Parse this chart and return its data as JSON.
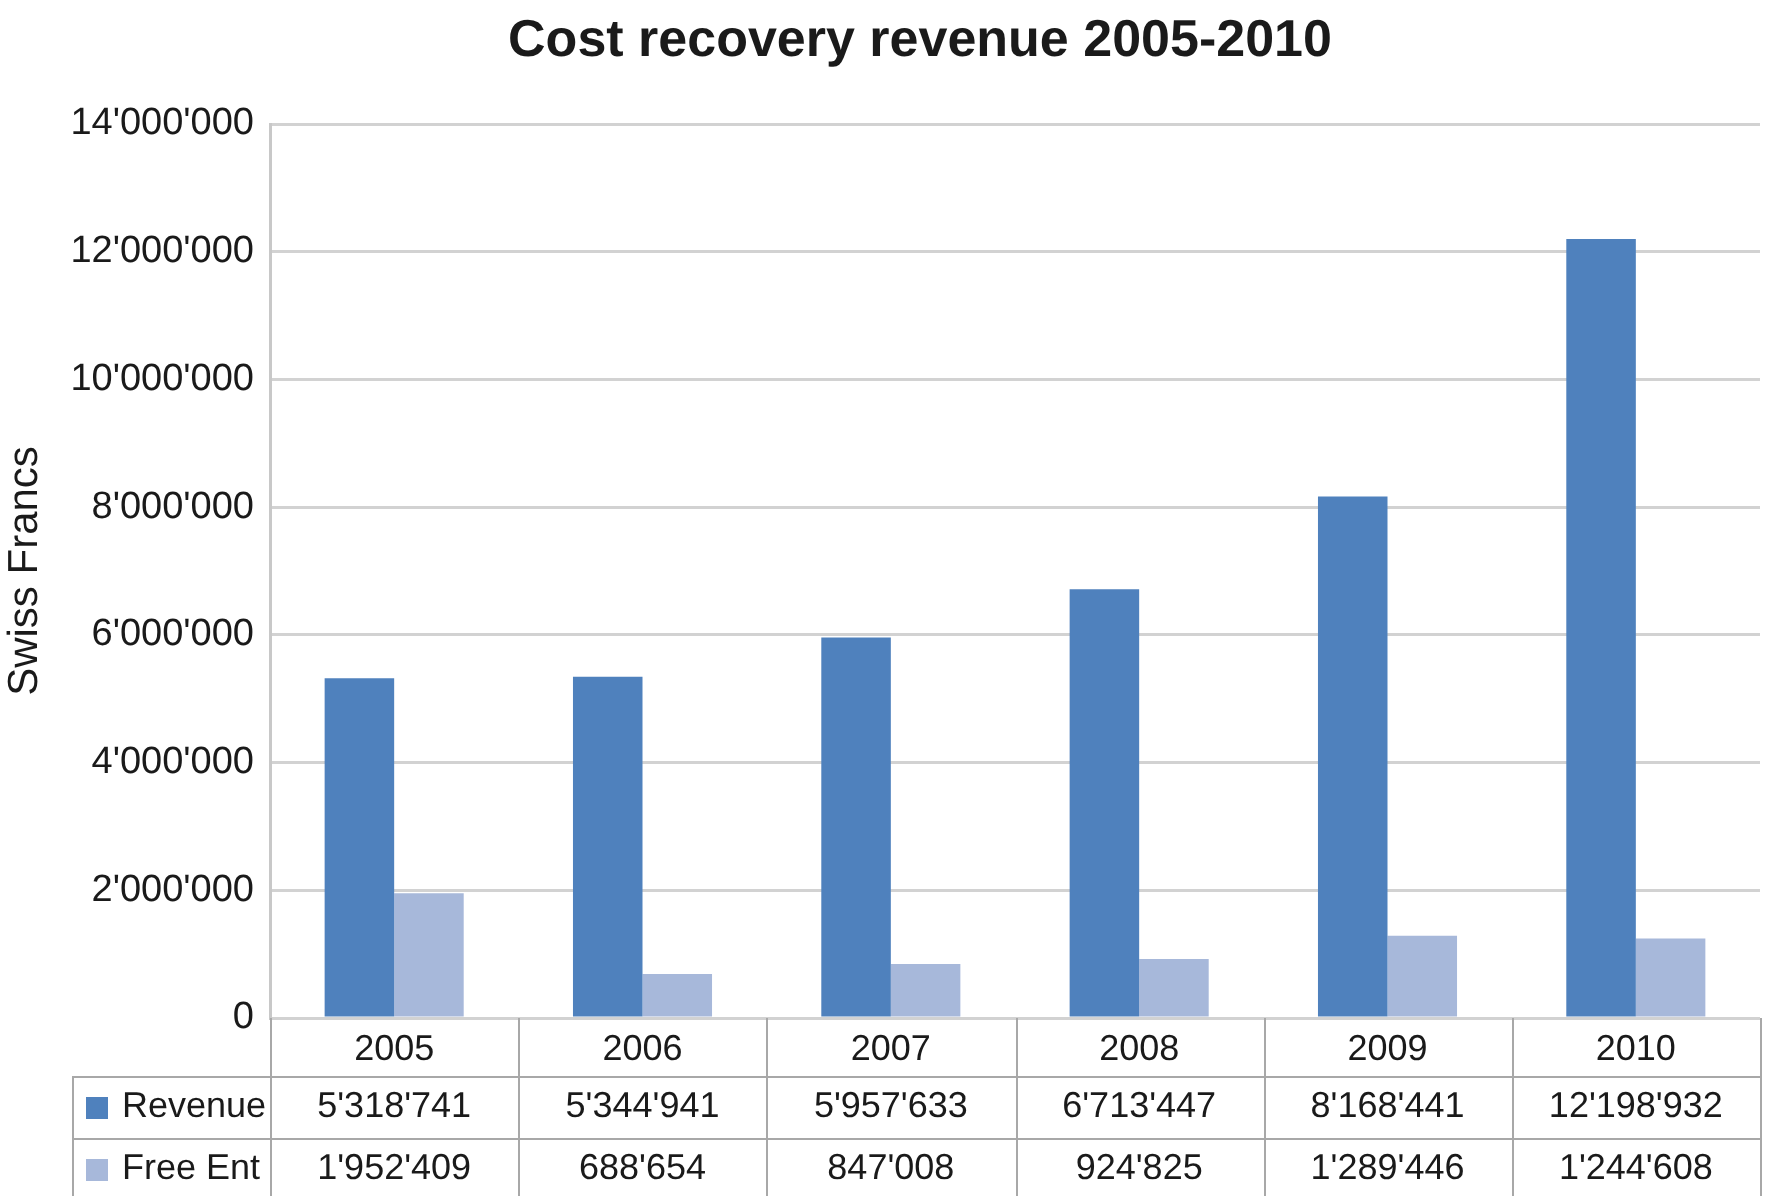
{
  "chart_data": {
    "type": "bar",
    "title": "Cost recovery revenue 2005-2010",
    "ylabel": "Swiss Francs",
    "categories": [
      "2005",
      "2006",
      "2007",
      "2008",
      "2009",
      "2010"
    ],
    "series": [
      {
        "name": "Revenue",
        "color": "#4f81bd",
        "values": [
          5318741,
          5344941,
          5957633,
          6713447,
          8168441,
          12198932
        ],
        "value_labels": [
          "5'318'741",
          "5'344'941",
          "5'957'633",
          "6'713'447",
          "8'168'441",
          "12'198'932"
        ]
      },
      {
        "name": "Free Ent",
        "color": "#a7b8da",
        "values": [
          1952409,
          688654,
          847008,
          924825,
          1289446,
          1244608
        ],
        "value_labels": [
          "1'952'409",
          "688'654",
          "847'008",
          "924'825",
          "1'289'446",
          "1'244'608"
        ]
      }
    ],
    "ylim": [
      0,
      14000000
    ],
    "yticks": [
      0,
      {
        "value": 2000000,
        "label": "2'000'000"
      },
      {
        "value": 4000000,
        "label": "4'000'000"
      },
      {
        "value": 6000000,
        "label": "6'000'000"
      },
      {
        "value": 8000000,
        "label": "8'000'000"
      },
      {
        "value": 10000000,
        "label": "10'000'000"
      },
      {
        "value": 12000000,
        "label": "12'000'000"
      },
      {
        "value": 14000000,
        "label": "14'000'000"
      }
    ],
    "grid": "y",
    "legend": "bottom"
  }
}
